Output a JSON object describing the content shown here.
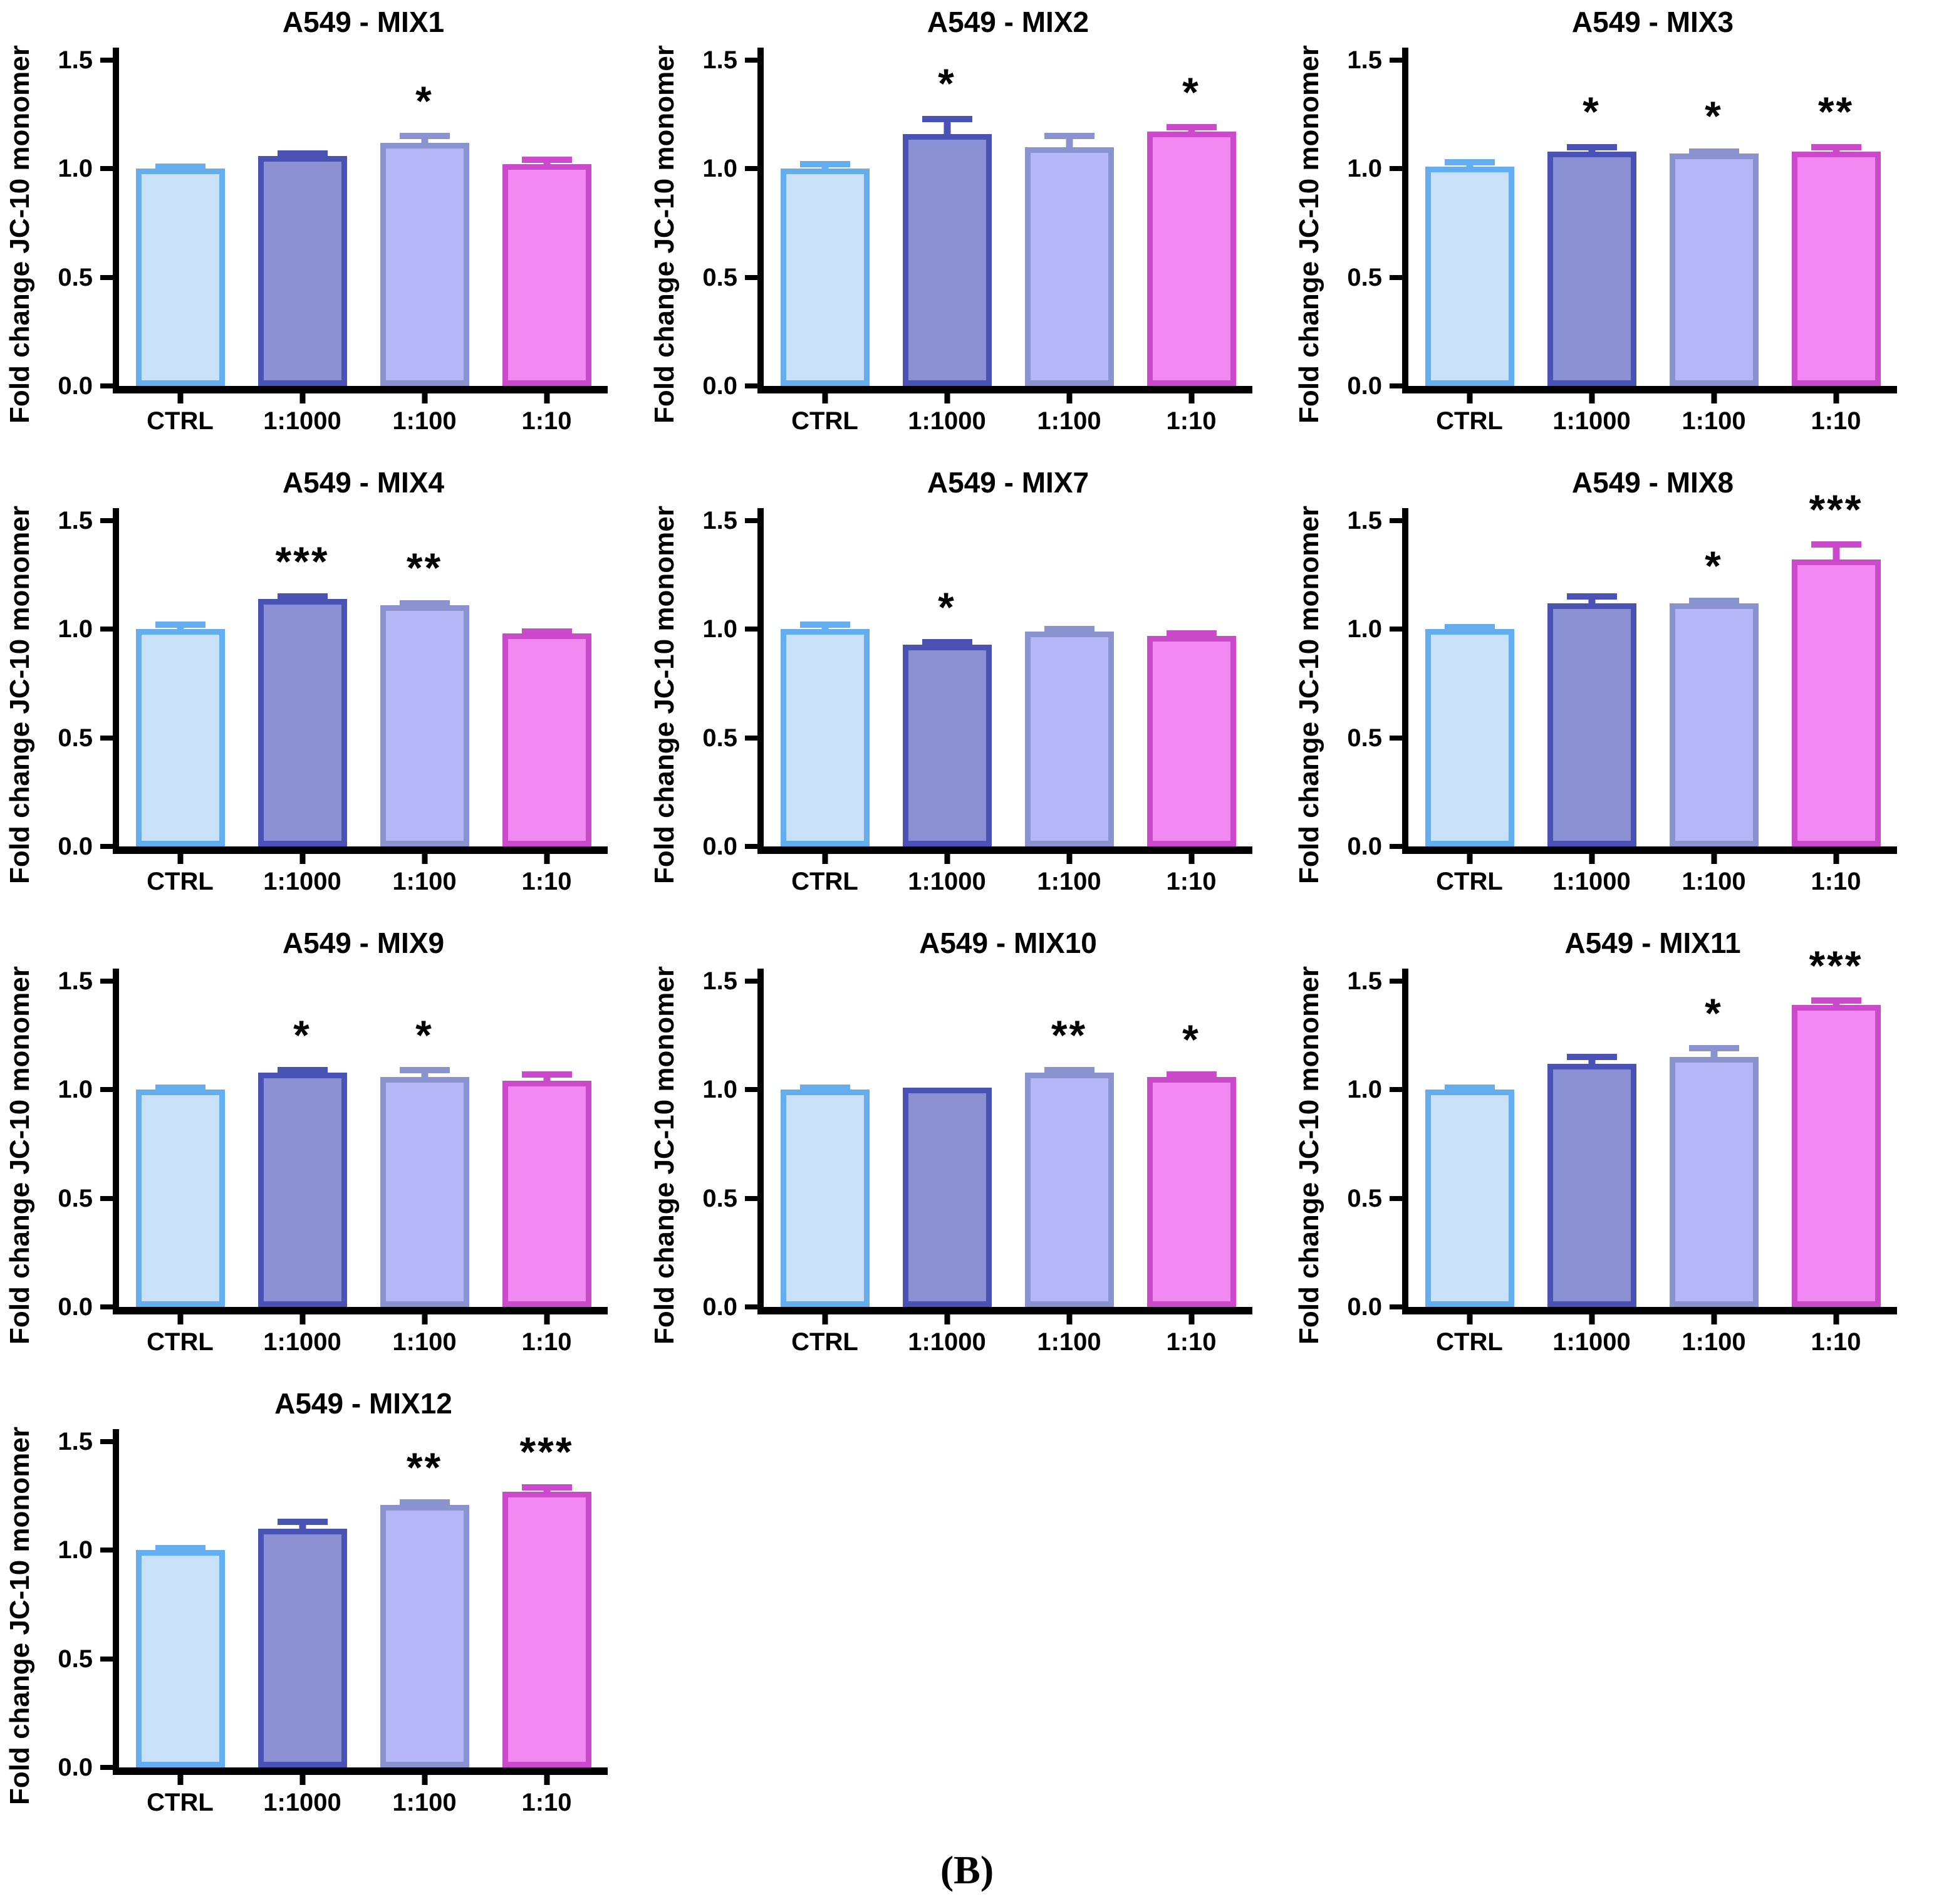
{
  "figure_label": "(B)",
  "axes": {
    "ylabel": "Fold change JC-10 monomer",
    "ylim": [
      0,
      1.5
    ],
    "yticks": [
      0,
      0.5,
      1.0,
      1.5
    ],
    "ytick_labels": [
      "0.0",
      "0.5",
      "1.0",
      "1.5"
    ],
    "grid": "off",
    "legend": "none"
  },
  "categories": [
    "CTRL",
    "1:1000",
    "1:100",
    "1:10"
  ],
  "bar_colors": [
    {
      "name": "ctrl-light-blue",
      "fill": "#C8E0F8",
      "border": "#64AEF0"
    },
    {
      "name": "dilution-1-1000-indigo",
      "fill": "#8A90D2",
      "border": "#4A52B5"
    },
    {
      "name": "dilution-1-100-periwinkle",
      "fill": "#B5B6F8",
      "border": "#8A93CF"
    },
    {
      "name": "dilution-1-10-magenta",
      "fill": "#F289F2",
      "border": "#CB4ACB"
    }
  ],
  "chart_data": [
    {
      "type": "bar",
      "title": "A549 - MIX1",
      "categories": [
        "CTRL",
        "1:1000",
        "1:100",
        "1:10"
      ],
      "values": [
        1.0,
        1.06,
        1.12,
        1.02
      ],
      "errors": [
        0.01,
        0.01,
        0.03,
        0.02
      ],
      "significance": [
        "",
        "",
        "*",
        ""
      ],
      "ylim": [
        0,
        1.5
      ]
    },
    {
      "type": "bar",
      "title": "A549 - MIX2",
      "categories": [
        "CTRL",
        "1:1000",
        "1:100",
        "1:10"
      ],
      "values": [
        1.0,
        1.16,
        1.1,
        1.17
      ],
      "errors": [
        0.02,
        0.07,
        0.05,
        0.02
      ],
      "significance": [
        "",
        "*",
        "",
        "*"
      ],
      "ylim": [
        0,
        1.5
      ]
    },
    {
      "type": "bar",
      "title": "A549 - MIX3",
      "categories": [
        "CTRL",
        "1:1000",
        "1:100",
        "1:10"
      ],
      "values": [
        1.01,
        1.08,
        1.07,
        1.08
      ],
      "errors": [
        0.02,
        0.02,
        0.01,
        0.02
      ],
      "significance": [
        "",
        "*",
        "*",
        "**"
      ],
      "ylim": [
        0,
        1.5
      ]
    },
    {
      "type": "bar",
      "title": "A549 - MIX4",
      "categories": [
        "CTRL",
        "1:1000",
        "1:100",
        "1:10"
      ],
      "values": [
        1.0,
        1.14,
        1.11,
        0.98
      ],
      "errors": [
        0.02,
        0.01,
        0.01,
        0.01
      ],
      "significance": [
        "",
        "***",
        "**",
        ""
      ],
      "ylim": [
        0,
        1.5
      ]
    },
    {
      "type": "bar",
      "title": "A549 - MIX7",
      "categories": [
        "CTRL",
        "1:1000",
        "1:100",
        "1:10"
      ],
      "values": [
        1.0,
        0.93,
        0.99,
        0.97
      ],
      "errors": [
        0.02,
        0.01,
        0.01,
        0.01
      ],
      "significance": [
        "",
        "*",
        "",
        ""
      ],
      "ylim": [
        0,
        1.5
      ]
    },
    {
      "type": "bar",
      "title": "A549 - MIX8",
      "categories": [
        "CTRL",
        "1:1000",
        "1:100",
        "1:10"
      ],
      "values": [
        1.0,
        1.12,
        1.12,
        1.32
      ],
      "errors": [
        0.01,
        0.03,
        0.01,
        0.07
      ],
      "significance": [
        "",
        "",
        "*",
        "***"
      ],
      "ylim": [
        0,
        1.5
      ]
    },
    {
      "type": "bar",
      "title": "A549 - MIX9",
      "categories": [
        "CTRL",
        "1:1000",
        "1:100",
        "1:10"
      ],
      "values": [
        1.0,
        1.08,
        1.06,
        1.04
      ],
      "errors": [
        0.01,
        0.01,
        0.03,
        0.03
      ],
      "significance": [
        "",
        "*",
        "*",
        ""
      ],
      "ylim": [
        0,
        1.5
      ]
    },
    {
      "type": "bar",
      "title": "A549 - MIX10",
      "categories": [
        "CTRL",
        "1:1000",
        "1:100",
        "1:10"
      ],
      "values": [
        1.0,
        1.01,
        1.08,
        1.06
      ],
      "errors": [
        0.01,
        0.0,
        0.01,
        0.01
      ],
      "significance": [
        "",
        "",
        "**",
        "*"
      ],
      "ylim": [
        0,
        1.5
      ]
    },
    {
      "type": "bar",
      "title": "A549 - MIX11",
      "categories": [
        "CTRL",
        "1:1000",
        "1:100",
        "1:10"
      ],
      "values": [
        1.0,
        1.12,
        1.15,
        1.39
      ],
      "errors": [
        0.01,
        0.03,
        0.04,
        0.02
      ],
      "significance": [
        "",
        "",
        "*",
        "***"
      ],
      "ylim": [
        0,
        1.5
      ]
    },
    {
      "type": "bar",
      "title": "A549 - MIX12",
      "categories": [
        "CTRL",
        "1:1000",
        "1:100",
        "1:10"
      ],
      "values": [
        1.0,
        1.1,
        1.21,
        1.27
      ],
      "errors": [
        0.01,
        0.03,
        0.01,
        0.02
      ],
      "significance": [
        "",
        "",
        "**",
        "***"
      ],
      "ylim": [
        0,
        1.5
      ]
    }
  ]
}
